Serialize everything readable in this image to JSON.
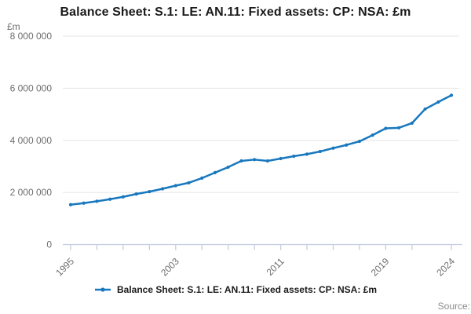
{
  "header": {
    "title": "Balance Sheet: S.1: LE: AN.11: Fixed assets: CP: NSA: £m"
  },
  "y_axis_unit_label": "£m",
  "legend": {
    "label": "Balance Sheet: S.1: LE: AN.11: Fixed assets: CP: NSA: £m"
  },
  "source_label": "Source:",
  "colors": {
    "line": "#1878be",
    "grid": "#e4e4e4",
    "axis": "#c3cde0",
    "tick_label": "#6e6e6e",
    "title_text": "#1a1a1a",
    "source_text": "#8a8a8a"
  },
  "chart_data": {
    "type": "line",
    "title": "Balance Sheet: S.1: LE: AN.11: Fixed assets: CP: NSA: £m",
    "xlabel": "",
    "ylabel": "£m",
    "legend_entries": [
      "Balance Sheet: S.1: LE: AN.11: Fixed assets: CP: NSA: £m"
    ],
    "legend_position": "bottom",
    "grid": "horizontal",
    "ylim": [
      0,
      8000000
    ],
    "yticks": [
      0,
      2000000,
      4000000,
      6000000,
      8000000
    ],
    "ytick_labels": [
      "0",
      "2 000 000",
      "4 000 000",
      "6 000 000",
      "8 000 000"
    ],
    "xlim": [
      1995,
      2024
    ],
    "xticks": [
      1995,
      1997,
      1999,
      2001,
      2003,
      2005,
      2007,
      2009,
      2011,
      2013,
      2015,
      2017,
      2019,
      2021,
      2024
    ],
    "labeled_xticks": [
      1995,
      2003,
      2011,
      2019,
      2024
    ],
    "x": [
      1995,
      1996,
      1997,
      1998,
      1999,
      2000,
      2001,
      2002,
      2003,
      2004,
      2005,
      2006,
      2007,
      2008,
      2009,
      2010,
      2011,
      2012,
      2013,
      2014,
      2015,
      2016,
      2017,
      2018,
      2019,
      2020,
      2021,
      2022,
      2023,
      2024
    ],
    "series": [
      {
        "name": "Balance Sheet: S.1: LE: AN.11: Fixed assets: CP: NSA: £m",
        "values": [
          1530000,
          1590000,
          1660000,
          1740000,
          1830000,
          1940000,
          2030000,
          2140000,
          2260000,
          2370000,
          2550000,
          2760000,
          2970000,
          3210000,
          3260000,
          3210000,
          3300000,
          3390000,
          3470000,
          3570000,
          3700000,
          3820000,
          3960000,
          4200000,
          4460000,
          4480000,
          4660000,
          5200000,
          5470000,
          5730000
        ]
      }
    ]
  }
}
